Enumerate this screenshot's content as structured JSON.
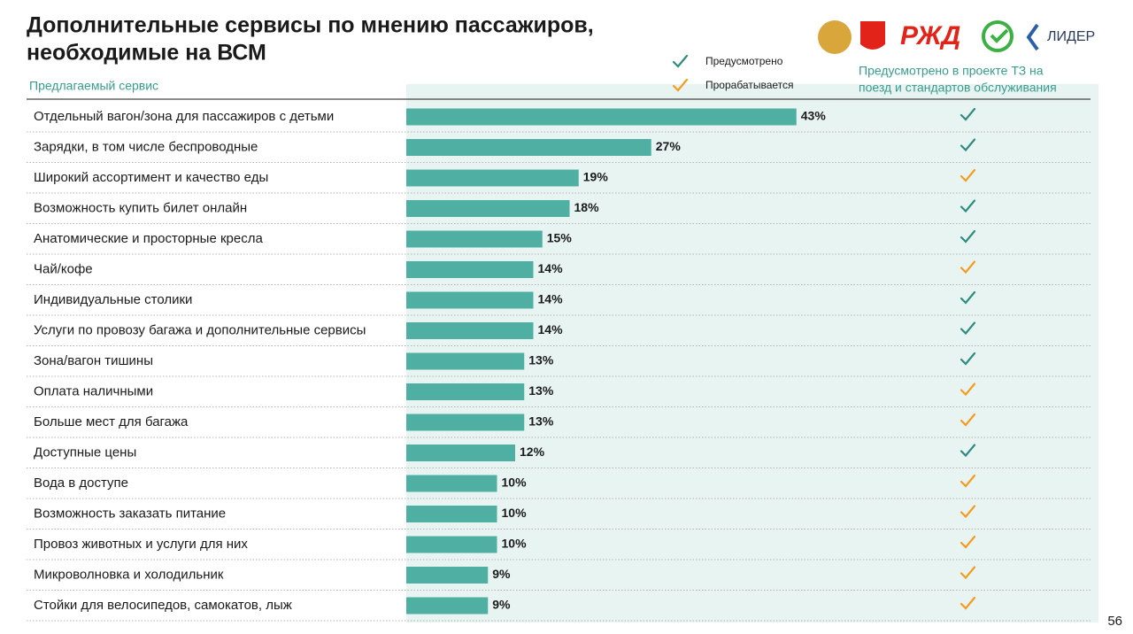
{
  "chart_data": {
    "type": "bar",
    "orientation": "horizontal",
    "title_lines": [
      "Дополнительные сервисы по мнению пассажиров,",
      "необходимые на ВСМ"
    ],
    "category_header": "Предлагаемый сервис",
    "status_header_lines": [
      "Предусмотрено в проекте ТЗ на",
      "поезд и стандартов обслуживания"
    ],
    "legend": [
      {
        "name": "Предусмотрено",
        "color": "#2e8b80"
      },
      {
        "name": "Прорабатывается",
        "color": "#f39c1f"
      }
    ],
    "categories": [
      "Отдельный вагон/зона для пассажиров с детьми",
      "Зарядки, в том числе беспроводные",
      "Широкий ассортимент и качество еды",
      "Возможность купить билет онлайн",
      "Анатомические и просторные кресла",
      "Чай/кофе",
      "Индивидуальные столики",
      "Услуги по провозу багажа и дополнительные сервисы",
      "Зона/вагон тишины",
      "Оплата наличными",
      "Больше мест для багажа",
      "Доступные цены",
      "Вода в доступе",
      "Возможность заказать питание",
      "Провоз животных и услуги для них",
      "Микроволновка и холодильник",
      "Стойки для велосипедов, самокатов, лыж"
    ],
    "values": [
      43,
      27,
      19,
      18,
      15,
      14,
      14,
      14,
      13,
      13,
      13,
      12,
      10,
      10,
      10,
      9,
      9
    ],
    "value_labels": [
      "43%",
      "27%",
      "19%",
      "18%",
      "15%",
      "14%",
      "14%",
      "14%",
      "13%",
      "13%",
      "13%",
      "12%",
      "10%",
      "10%",
      "10%",
      "9%",
      "9%"
    ],
    "row_status": [
      0,
      0,
      1,
      0,
      0,
      1,
      0,
      0,
      0,
      1,
      1,
      0,
      1,
      1,
      1,
      1,
      1
    ],
    "color": "#4fafa3",
    "logos": [
      "РЖД",
      "ЛИДЕР"
    ],
    "page_number": "56"
  }
}
